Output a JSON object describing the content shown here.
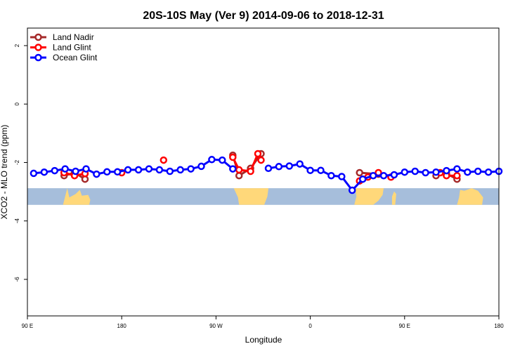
{
  "chart_data": {
    "type": "line",
    "title": "20S-10S May (Ver 9)   2014-09-06 to 2018-12-31",
    "xlabel": "Longitude",
    "ylabel": "XCO2 - MLO trend (ppm)",
    "xlim": [
      90,
      540
    ],
    "ylim": [
      -7.25,
      2.6
    ],
    "x_ticks": [
      {
        "value": 90,
        "label": "90 E"
      },
      {
        "value": 180,
        "label": "180"
      },
      {
        "value": 270,
        "label": "90 W"
      },
      {
        "value": 360,
        "label": "0"
      },
      {
        "value": 450,
        "label": "90 E"
      },
      {
        "value": 540,
        "label": "180"
      }
    ],
    "y_ticks": [
      {
        "value": 2,
        "label": "2"
      },
      {
        "value": 0,
        "label": "0"
      },
      {
        "value": -2,
        "label": "-2"
      },
      {
        "value": -4,
        "label": "-4"
      },
      {
        "value": -6,
        "label": "-6"
      }
    ],
    "grid": false,
    "legend_position": "top-left",
    "legend": [
      "Land Nadir",
      "Land Glint",
      "Ocean Glint"
    ],
    "series": [
      {
        "name": "Land Nadir",
        "color": "#a52a2a",
        "segments": [
          [
            [
              125,
              -2.45
            ],
            [
              135,
              -2.35
            ],
            [
              145,
              -2.57
            ]
          ],
          [
            [
              286,
              -1.75
            ],
            [
              292,
              -2.45
            ],
            [
              303,
              -2.2
            ],
            [
              313,
              -1.7
            ]
          ],
          [
            [
              407,
              -2.35
            ],
            [
              425,
              -2.4
            ]
          ],
          [
            [
              480,
              -2.45
            ],
            [
              490,
              -2.38
            ],
            [
              500,
              -2.57
            ]
          ]
        ]
      },
      {
        "name": "Land Glint",
        "color": "#ff0000",
        "segments": [
          [
            [
              125,
              -2.35
            ],
            [
              135,
              -2.45
            ],
            [
              145,
              -2.38
            ]
          ],
          [
            [
              180,
              -2.35
            ]
          ],
          [
            [
              220,
              -1.92
            ]
          ],
          [
            [
              286,
              -1.82
            ],
            [
              292,
              -2.25
            ],
            [
              303,
              -2.3
            ],
            [
              310,
              -1.7
            ],
            [
              313,
              -1.92
            ]
          ],
          [
            [
              407,
              -2.63
            ],
            [
              415,
              -2.5
            ],
            [
              425,
              -2.35
            ],
            [
              437,
              -2.5
            ]
          ],
          [
            [
              484,
              -2.35
            ],
            [
              490,
              -2.45
            ],
            [
              500,
              -2.45
            ]
          ]
        ]
      },
      {
        "name": "Ocean Glint",
        "color": "#0000ff",
        "segments": [
          [
            [
              96,
              -2.37
            ],
            [
              106,
              -2.33
            ],
            [
              116,
              -2.28
            ],
            [
              126,
              -2.22
            ],
            [
              136,
              -2.3
            ],
            [
              146,
              -2.22
            ],
            [
              156,
              -2.4
            ],
            [
              166,
              -2.32
            ],
            [
              176,
              -2.32
            ],
            [
              186,
              -2.25
            ],
            [
              196,
              -2.25
            ],
            [
              206,
              -2.22
            ],
            [
              216,
              -2.25
            ],
            [
              226,
              -2.3
            ],
            [
              236,
              -2.25
            ],
            [
              246,
              -2.22
            ],
            [
              256,
              -2.13
            ],
            [
              266,
              -1.9
            ],
            [
              276,
              -1.92
            ],
            [
              286,
              -2.22
            ]
          ],
          [
            [
              320,
              -2.2
            ],
            [
              330,
              -2.14
            ],
            [
              340,
              -2.12
            ],
            [
              350,
              -2.05
            ],
            [
              360,
              -2.27
            ],
            [
              370,
              -2.27
            ],
            [
              380,
              -2.45
            ],
            [
              390,
              -2.48
            ],
            [
              400,
              -2.95
            ],
            [
              410,
              -2.57
            ],
            [
              420,
              -2.45
            ],
            [
              430,
              -2.45
            ],
            [
              440,
              -2.42
            ],
            [
              450,
              -2.33
            ],
            [
              460,
              -2.3
            ],
            [
              470,
              -2.35
            ],
            [
              480,
              -2.33
            ],
            [
              490,
              -2.28
            ],
            [
              500,
              -2.22
            ],
            [
              510,
              -2.33
            ],
            [
              520,
              -2.3
            ],
            [
              530,
              -2.33
            ],
            [
              540,
              -2.3
            ]
          ]
        ]
      }
    ],
    "land_mask_band": {
      "y_top": -2.88,
      "y_bottom": -3.45,
      "ocean_color": "#a6bedb",
      "land_color": "#ffd87a"
    }
  }
}
